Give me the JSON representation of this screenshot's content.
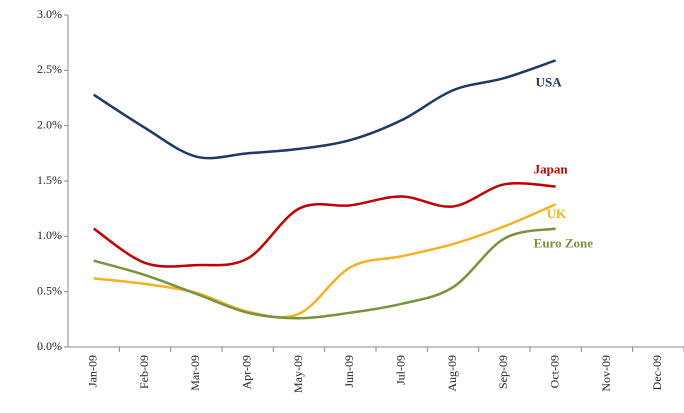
{
  "chart_data": {
    "type": "line",
    "categories": [
      "Jan-09",
      "Feb-09",
      "Mar-09",
      "Apr-09",
      "May-09",
      "Jun-09",
      "Jul-09",
      "Aug-09",
      "Sep-09",
      "Oct-09",
      "Nov-09",
      "Dec-09"
    ],
    "series": [
      {
        "name": "USA",
        "color": "#1f3864",
        "values": [
          2.28,
          1.98,
          1.72,
          1.75,
          1.79,
          1.87,
          2.05,
          2.32,
          2.43,
          2.59,
          null,
          null
        ]
      },
      {
        "name": "Japan",
        "color": "#c00000",
        "values": [
          1.07,
          0.76,
          0.74,
          0.8,
          1.25,
          1.28,
          1.36,
          1.27,
          1.47,
          1.45,
          null,
          null
        ]
      },
      {
        "name": "UK",
        "color": "#f0b323",
        "values": [
          0.62,
          0.57,
          0.49,
          0.32,
          0.3,
          0.72,
          0.82,
          0.93,
          1.09,
          1.29,
          null,
          null
        ]
      },
      {
        "name": "Euro  Zone",
        "color": "#77933c",
        "values": [
          0.78,
          0.65,
          0.48,
          0.31,
          0.26,
          0.31,
          0.39,
          0.54,
          0.98,
          1.07,
          null,
          null
        ]
      }
    ],
    "ylim": [
      0,
      3
    ],
    "yticks": [
      {
        "value": 0,
        "label": "0.0%"
      },
      {
        "value": 0.5,
        "label": "0.5%"
      },
      {
        "value": 1,
        "label": "1.0%"
      },
      {
        "value": 1.5,
        "label": "1.5%"
      },
      {
        "value": 2,
        "label": "2.0%"
      },
      {
        "value": 2.5,
        "label": "2.5%"
      },
      {
        "value": 3,
        "label": "3.0%"
      }
    ],
    "grid": false
  }
}
